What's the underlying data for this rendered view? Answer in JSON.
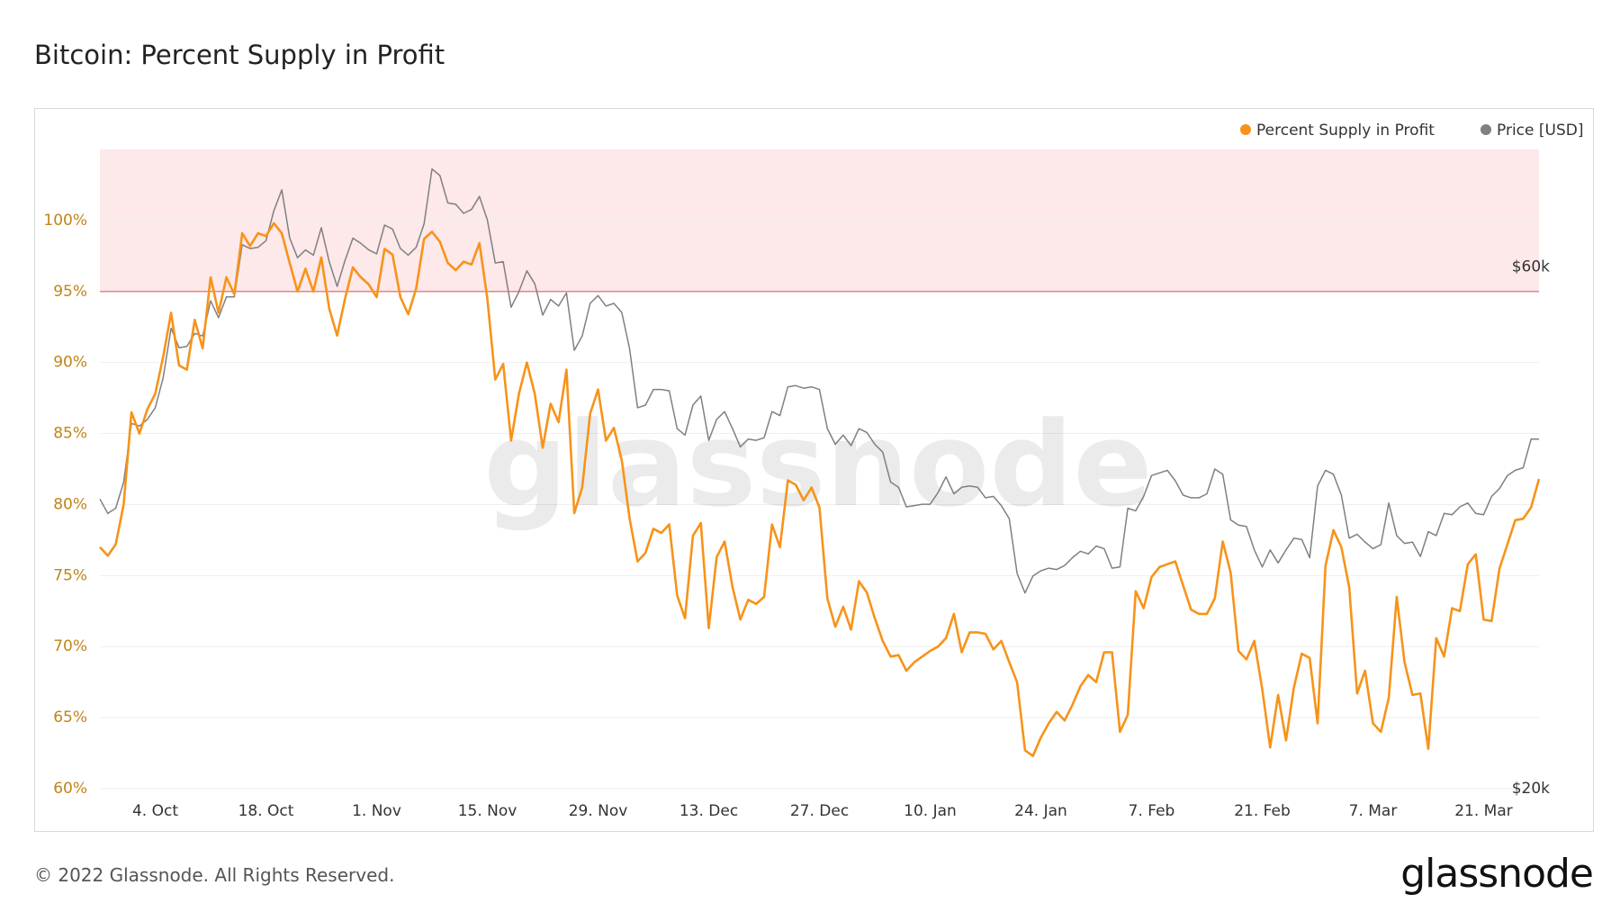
{
  "title": "Bitcoin: Percent Supply in Profit",
  "footer": "© 2022 Glassnode. All Rights Reserved.",
  "brand": "glassnode",
  "watermark": "glassnode",
  "colors": {
    "supply": "#f7931a",
    "price": "#808080",
    "zone_fill": "#fde8ea",
    "threshold": "#f08080",
    "left_axis": "#c0841a",
    "grid": "#eeeeee"
  },
  "chart_data": {
    "type": "line",
    "title": "Bitcoin: Percent Supply in Profit",
    "legend_position": "top-right",
    "legend": [
      "Percent Supply in Profit",
      "Price [USD]"
    ],
    "x_ticks": [
      "4. Oct",
      "18. Oct",
      "1. Nov",
      "15. Nov",
      "29. Nov",
      "13. Dec",
      "27. Dec",
      "10. Jan",
      "24. Jan",
      "7. Feb",
      "21. Feb",
      "7. Mar",
      "21. Mar"
    ],
    "y_left_ticks": [
      "60%",
      "65%",
      "70%",
      "75%",
      "80%",
      "85%",
      "90%",
      "95%",
      "100%"
    ],
    "y_left_range": [
      60,
      105
    ],
    "y_right_ticks": [
      "$20k",
      "$60k"
    ],
    "y_right_range": [
      20000,
      69000
    ],
    "highlight_zone": [
      95,
      105
    ],
    "x": [
      "2021-09-27",
      "2021-09-28",
      "2021-09-29",
      "2021-09-30",
      "2021-10-01",
      "2021-10-02",
      "2021-10-03",
      "2021-10-04",
      "2021-10-05",
      "2021-10-06",
      "2021-10-07",
      "2021-10-08",
      "2021-10-09",
      "2021-10-10",
      "2021-10-11",
      "2021-10-12",
      "2021-10-13",
      "2021-10-14",
      "2021-10-15",
      "2021-10-16",
      "2021-10-17",
      "2021-10-18",
      "2021-10-19",
      "2021-10-20",
      "2021-10-21",
      "2021-10-22",
      "2021-10-23",
      "2021-10-24",
      "2021-10-25",
      "2021-10-26",
      "2021-10-27",
      "2021-10-28",
      "2021-10-29",
      "2021-10-30",
      "2021-10-31",
      "2021-11-01",
      "2021-11-02",
      "2021-11-03",
      "2021-11-04",
      "2021-11-05",
      "2021-11-06",
      "2021-11-07",
      "2021-11-08",
      "2021-11-09",
      "2021-11-10",
      "2021-11-11",
      "2021-11-12",
      "2021-11-13",
      "2021-11-14",
      "2021-11-15",
      "2021-11-16",
      "2021-11-17",
      "2021-11-18",
      "2021-11-19",
      "2021-11-20",
      "2021-11-21",
      "2021-11-22",
      "2021-11-23",
      "2021-11-24",
      "2021-11-25",
      "2021-11-26",
      "2021-11-27",
      "2021-11-28",
      "2021-11-29",
      "2021-11-30",
      "2021-12-01",
      "2021-12-02",
      "2021-12-03",
      "2021-12-04",
      "2021-12-05",
      "2021-12-06",
      "2021-12-07",
      "2021-12-08",
      "2021-12-09",
      "2021-12-10",
      "2021-12-11",
      "2021-12-12",
      "2021-12-13",
      "2021-12-14",
      "2021-12-15",
      "2021-12-16",
      "2021-12-17",
      "2021-12-18",
      "2021-12-19",
      "2021-12-20",
      "2021-12-21",
      "2021-12-22",
      "2021-12-23",
      "2021-12-24",
      "2021-12-25",
      "2021-12-26",
      "2021-12-27",
      "2021-12-28",
      "2021-12-29",
      "2021-12-30",
      "2021-12-31",
      "2022-01-01",
      "2022-01-02",
      "2022-01-03",
      "2022-01-04",
      "2022-01-05",
      "2022-01-06",
      "2022-01-07",
      "2022-01-08",
      "2022-01-09",
      "2022-01-10",
      "2022-01-11",
      "2022-01-12",
      "2022-01-13",
      "2022-01-14",
      "2022-01-15",
      "2022-01-16",
      "2022-01-17",
      "2022-01-18",
      "2022-01-19",
      "2022-01-20",
      "2022-01-21",
      "2022-01-22",
      "2022-01-23",
      "2022-01-24",
      "2022-01-25",
      "2022-01-26",
      "2022-01-27",
      "2022-01-28",
      "2022-01-29",
      "2022-01-30",
      "2022-01-31",
      "2022-02-01",
      "2022-02-02",
      "2022-02-03",
      "2022-02-04",
      "2022-02-05",
      "2022-02-06",
      "2022-02-07",
      "2022-02-08",
      "2022-02-09",
      "2022-02-10",
      "2022-02-11",
      "2022-02-12",
      "2022-02-13",
      "2022-02-14",
      "2022-02-15",
      "2022-02-16",
      "2022-02-17",
      "2022-02-18",
      "2022-02-19",
      "2022-02-20",
      "2022-02-21",
      "2022-02-22",
      "2022-02-23",
      "2022-02-24",
      "2022-02-25",
      "2022-02-26",
      "2022-02-27",
      "2022-02-28",
      "2022-03-01",
      "2022-03-02",
      "2022-03-03",
      "2022-03-04",
      "2022-03-05",
      "2022-03-06",
      "2022-03-07",
      "2022-03-08",
      "2022-03-09",
      "2022-03-10",
      "2022-03-11",
      "2022-03-12",
      "2022-03-13",
      "2022-03-14",
      "2022-03-15",
      "2022-03-16",
      "2022-03-17",
      "2022-03-18",
      "2022-03-19",
      "2022-03-20",
      "2022-03-21",
      "2022-03-22",
      "2022-03-23",
      "2022-03-24",
      "2022-03-25",
      "2022-03-26",
      "2022-03-27",
      "2022-03-28"
    ],
    "series": [
      {
        "name": "Percent Supply in Profit",
        "axis": "left",
        "values": [
          77.0,
          76.4,
          77.2,
          80.0,
          86.5,
          85.0,
          86.7,
          87.8,
          90.4,
          93.5,
          89.8,
          89.5,
          93.0,
          91.0,
          96.0,
          93.5,
          96.0,
          94.8,
          99.1,
          98.2,
          99.1,
          98.9,
          99.8,
          99.1,
          97.0,
          95.0,
          96.6,
          95.0,
          97.4,
          93.8,
          91.9,
          94.5,
          96.7,
          96.0,
          95.5,
          94.6,
          98.0,
          97.6,
          94.6,
          93.4,
          95.2,
          98.7,
          99.2,
          98.5,
          97.0,
          96.5,
          97.1,
          96.9,
          98.4,
          94.5,
          88.8,
          89.9,
          84.5,
          87.8,
          90.0,
          87.8,
          84.0,
          87.1,
          85.8,
          89.5,
          79.4,
          81.2,
          86.4,
          88.1,
          84.5,
          85.4,
          83.1,
          79.0,
          76.0,
          76.6,
          78.3,
          78.0,
          78.6,
          73.6,
          72.0,
          77.8,
          78.7,
          71.3,
          76.3,
          77.4,
          74.2,
          71.9,
          73.3,
          73.0,
          73.5,
          78.6,
          77.0,
          81.7,
          81.4,
          80.3,
          81.2,
          79.8,
          73.4,
          71.4,
          72.8,
          71.2,
          74.6,
          73.8,
          72.0,
          70.4,
          69.3,
          69.4,
          68.3,
          68.9,
          69.3,
          69.7,
          70.0,
          70.6,
          72.3,
          69.6,
          71.0,
          71.0,
          70.9,
          69.8,
          70.4,
          68.9,
          67.5,
          62.7,
          62.3,
          63.6,
          64.6,
          65.4,
          64.8,
          65.9,
          67.2,
          68.0,
          67.5,
          69.6,
          69.6,
          64.0,
          65.2,
          73.9,
          72.7,
          74.9,
          75.6,
          75.8,
          76.0,
          74.3,
          72.6,
          72.3,
          72.3,
          73.4,
          77.4,
          75.2,
          69.7,
          69.1,
          70.4,
          67.0,
          62.9,
          66.6,
          63.4,
          67.1,
          69.5,
          69.2,
          64.6,
          75.7,
          78.2,
          77.0,
          74.2,
          66.7,
          68.3,
          64.6,
          64.0,
          66.4,
          73.5,
          68.9,
          66.6,
          66.7,
          62.8,
          70.6,
          69.3,
          72.7,
          72.5,
          75.8,
          76.5,
          71.9,
          71.8,
          75.5,
          77.2,
          78.9,
          79.0,
          79.8,
          81.8
        ]
      },
      {
        "name": "Price [USD]",
        "axis": "right",
        "values": [
          42200,
          41100,
          41500,
          43500,
          48000,
          47800,
          48300,
          49200,
          51500,
          55300,
          53800,
          53900,
          54900,
          54700,
          57400,
          56100,
          57700,
          57700,
          61700,
          61400,
          61500,
          62000,
          64300,
          65900,
          62200,
          60700,
          61300,
          60900,
          63000,
          60400,
          58500,
          60500,
          62200,
          61800,
          61300,
          61000,
          63200,
          62900,
          61400,
          60900,
          61500,
          63300,
          67500,
          67000,
          64900,
          64800,
          64100,
          64400,
          65400,
          63600,
          60300,
          60400,
          56900,
          58100,
          59700,
          58700,
          56300,
          57500,
          57000,
          58000,
          53600,
          54700,
          57200,
          57800,
          57000,
          57200,
          56500,
          53700,
          49200,
          49400,
          50600,
          50600,
          50500,
          47600,
          47100,
          49400,
          50100,
          46700,
          48300,
          48900,
          47600,
          46200,
          46800,
          46700,
          46900,
          48900,
          48600,
          50800,
          50900,
          50700,
          50800,
          50600,
          47600,
          46400,
          47100,
          46300,
          47600,
          47300,
          46400,
          45800,
          43500,
          43100,
          41600,
          41700,
          41800,
          41800,
          42700,
          43900,
          42600,
          43100,
          43200,
          43100,
          42300,
          42400,
          41700,
          40700,
          36500,
          35000,
          36300,
          36700,
          36900,
          36800,
          37100,
          37700,
          38200,
          38000,
          38600,
          38400,
          36900,
          37000,
          41500,
          41300,
          42400,
          44000,
          44200,
          44400,
          43600,
          42500,
          42300,
          42300,
          42600,
          44500,
          44100,
          40600,
          40200,
          40100,
          38300,
          37000,
          38300,
          37300,
          38300,
          39200,
          39100,
          37700,
          43200,
          44400,
          44100,
          42500,
          39200,
          39500,
          38900,
          38400,
          38700,
          41900,
          39400,
          38800,
          38900,
          37800,
          39700,
          39400,
          41100,
          41000,
          41600,
          41900,
          41100,
          41000,
          42400,
          43000,
          44000,
          44400,
          44600,
          46800,
          46800
        ]
      }
    ]
  }
}
